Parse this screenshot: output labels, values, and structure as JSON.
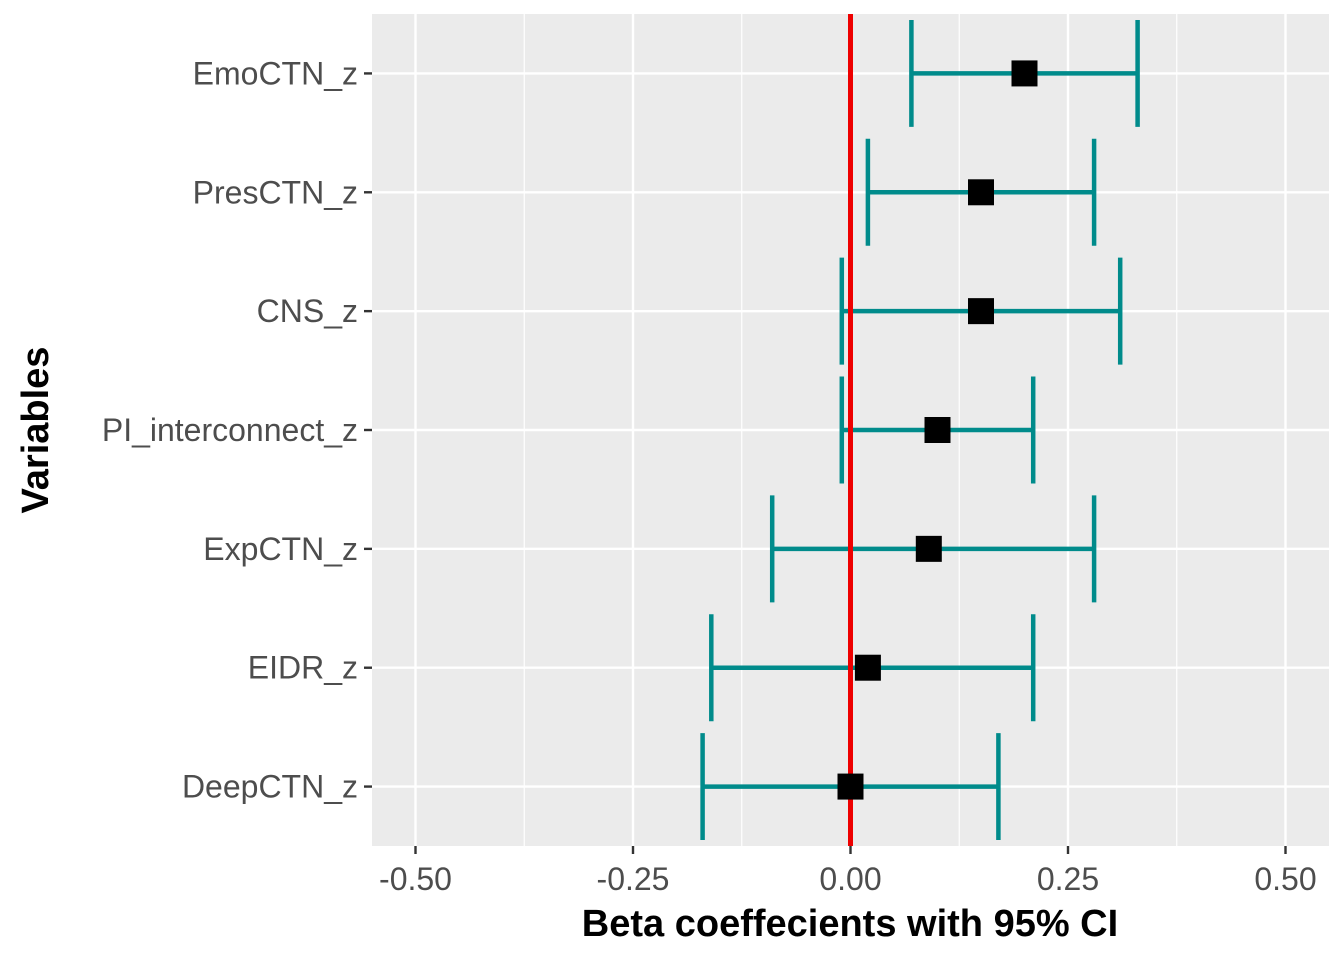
{
  "chart_data": {
    "type": "scatter",
    "subtype": "forest-plot",
    "xlabel": "Beta coeffecients with 95% CI",
    "ylabel": "Variables",
    "xlim": [
      -0.55,
      0.55
    ],
    "xticks": [
      -0.5,
      -0.25,
      0.0,
      0.25,
      0.5
    ],
    "xtick_labels": [
      "-0.50",
      "-0.25",
      "0.00",
      "0.25",
      "0.50"
    ],
    "reference_line": 0.0,
    "grid": true,
    "legend": "none",
    "colors": {
      "panel": "#ebebeb",
      "grid": "#ffffff",
      "errorbar": "#008b8b",
      "point": "#000000",
      "reference_line": "#ee0000"
    },
    "categories": [
      "EmoCTN_z",
      "PresCTN_z",
      "CNS_z",
      "PI_interconnect_z",
      "ExpCTN_z",
      "EIDR_z",
      "DeepCTN_z"
    ],
    "estimates": [
      0.2,
      0.15,
      0.15,
      0.1,
      0.09,
      0.02,
      0.0
    ],
    "ci_lower": [
      0.07,
      0.02,
      -0.01,
      -0.01,
      -0.09,
      -0.16,
      -0.17
    ],
    "ci_upper": [
      0.33,
      0.28,
      0.31,
      0.21,
      0.28,
      0.21,
      0.17
    ]
  }
}
